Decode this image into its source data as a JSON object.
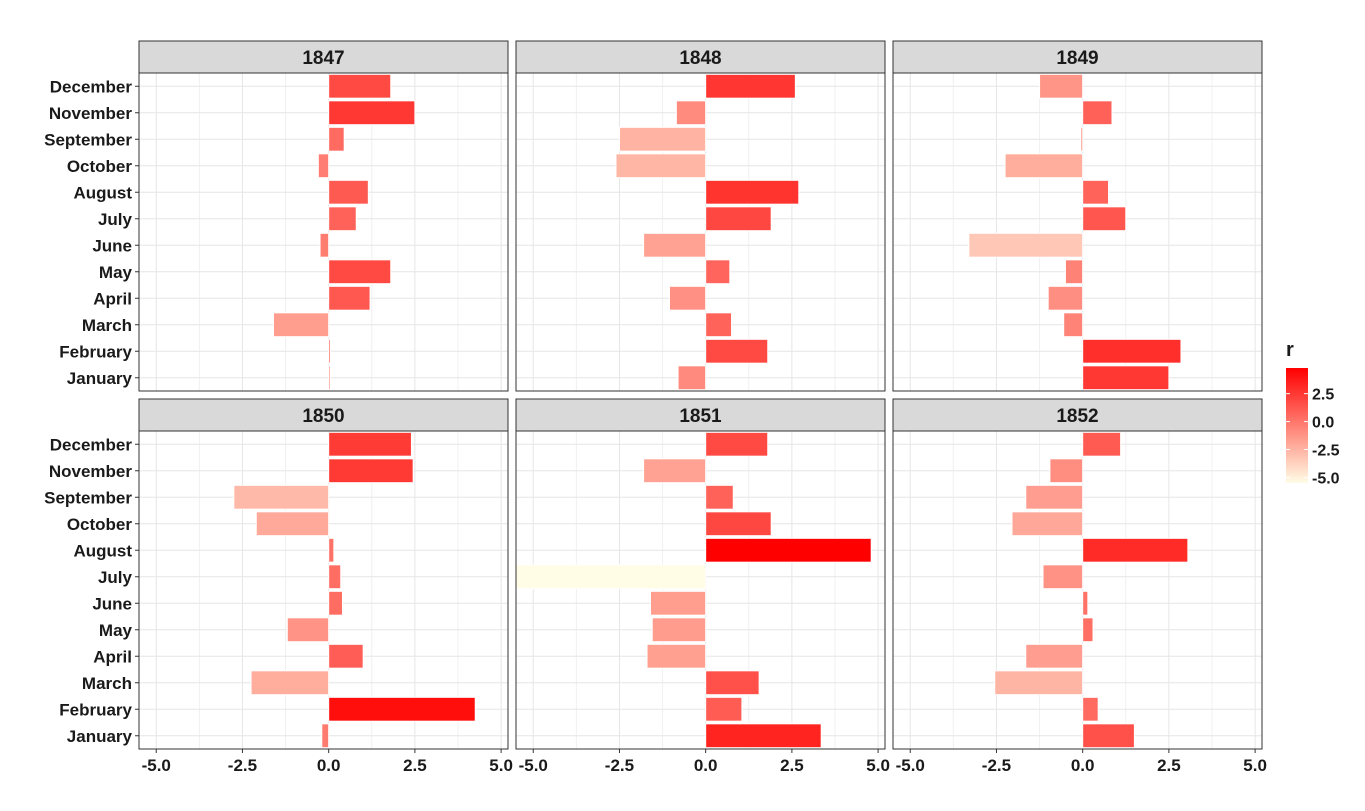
{
  "chart_data": {
    "type": "bar",
    "orientation": "horizontal",
    "facet_by": "year",
    "facets": [
      "1847",
      "1848",
      "1849",
      "1850",
      "1851",
      "1852"
    ],
    "categories": [
      "January",
      "February",
      "March",
      "April",
      "May",
      "June",
      "July",
      "August",
      "October",
      "September",
      "November",
      "December"
    ],
    "xlim": [
      -5.5,
      5.2
    ],
    "xticks": [
      -5.0,
      -2.5,
      0.0,
      2.5,
      5.0
    ],
    "xtick_labels": [
      "-5.0",
      "-2.5",
      "0.0",
      "2.5",
      "5.0"
    ],
    "grid": true,
    "series": [
      {
        "facet": "1847",
        "values": [
          0.0,
          0.05,
          -1.6,
          1.2,
          1.8,
          -0.25,
          0.8,
          1.15,
          -0.3,
          0.45,
          2.5,
          1.8
        ]
      },
      {
        "facet": "1848",
        "values": [
          -0.8,
          1.8,
          0.75,
          -1.05,
          0.7,
          -1.8,
          1.9,
          2.7,
          -2.6,
          -2.5,
          -0.85,
          2.6
        ]
      },
      {
        "facet": "1849",
        "values": [
          2.5,
          2.85,
          -0.55,
          -1.0,
          -0.5,
          -3.3,
          1.25,
          0.75,
          -2.25,
          -0.05,
          0.85,
          -1.25
        ]
      },
      {
        "facet": "1850",
        "values": [
          -0.2,
          4.25,
          -2.25,
          1.0,
          -1.2,
          0.4,
          0.35,
          0.15,
          -2.1,
          -2.75,
          2.45,
          2.4
        ]
      },
      {
        "facet": "1851",
        "values": [
          3.35,
          1.05,
          1.55,
          -1.7,
          -1.55,
          -1.6,
          -5.5,
          4.8,
          1.9,
          0.8,
          -1.8,
          1.8
        ]
      },
      {
        "facet": "1852",
        "values": [
          1.5,
          0.45,
          -2.55,
          -1.65,
          0.3,
          0.15,
          -1.15,
          3.05,
          -2.05,
          -1.65,
          -0.95,
          1.1
        ]
      }
    ],
    "color_scale": {
      "title": "r",
      "low": "#fffde6",
      "high": "#ff0000",
      "limits": [
        -5.5,
        4.8
      ],
      "breaks": [
        2.5,
        0.0,
        -2.5,
        -5.0
      ],
      "break_labels": [
        "2.5",
        "0.0",
        "-2.5",
        "-5.0"
      ]
    },
    "legend_position": "right"
  }
}
